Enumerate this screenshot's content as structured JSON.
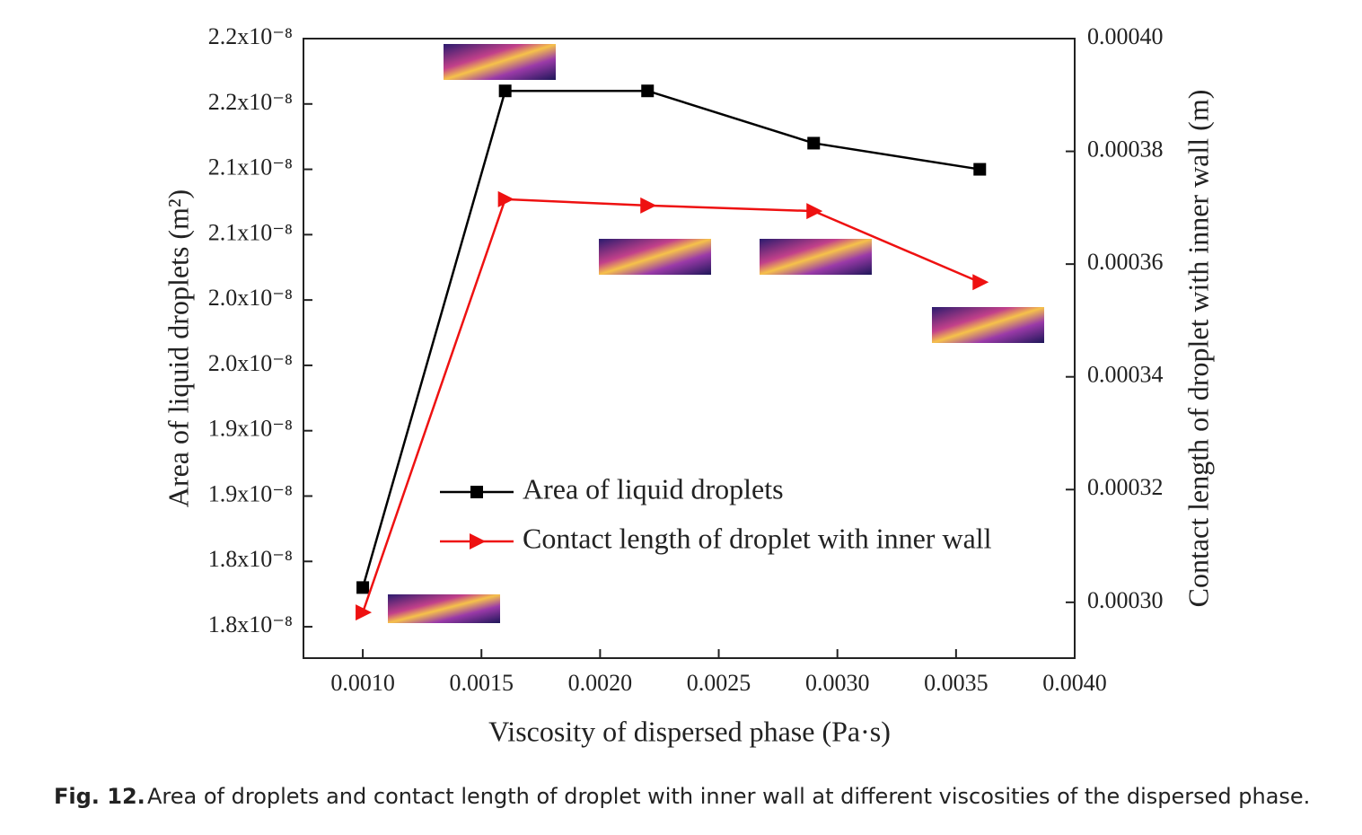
{
  "chart_data": {
    "type": "line",
    "x_label": "Viscosity of dispersed phase (Pa·s)",
    "y_label": "Area of liquid droplets (m²)",
    "y2_label": "Contact length of droplet with inner wall (m)",
    "caption_label": "Fig. 12.",
    "caption": "Area of droplets and contact length of droplet with inner wall at different viscosities of the dispersed phase.",
    "x": [
      0.001,
      0.0016,
      0.0022,
      0.0029,
      0.0036
    ],
    "series": [
      {
        "name": "Area of liquid droplets",
        "color": "#000000",
        "marker": "square",
        "values": [
          1.83e-08,
          2.21e-08,
          2.21e-08,
          2.17e-08,
          2.15e-08
        ]
      },
      {
        "name": "Contact length of droplet with inner wall",
        "color": "#ee1111",
        "marker": "triangle-right",
        "axis": "y2",
        "values": [
          0.0002982,
          0.0003715,
          0.0003704,
          0.0003694,
          0.0003568
        ]
      }
    ],
    "xlim": [
      0.00075,
      0.004
    ],
    "xticks": [
      {
        "value": 0.001,
        "label": "0.0010"
      },
      {
        "value": 0.0015,
        "label": "0.0015"
      },
      {
        "value": 0.002,
        "label": "0.0020"
      },
      {
        "value": 0.0025,
        "label": "0.0025"
      },
      {
        "value": 0.003,
        "label": "0.0030"
      },
      {
        "value": 0.0035,
        "label": "0.0035"
      },
      {
        "value": 0.004,
        "label": "0.0040"
      }
    ],
    "ylim": [
      1.776e-08,
      2.25e-08
    ],
    "yticks": [
      {
        "value": 1.8e-08,
        "label": "1.8x10⁻⁸"
      },
      {
        "value": 1.85e-08,
        "label": "1.8x10⁻⁸"
      },
      {
        "value": 1.9e-08,
        "label": "1.9x10⁻⁸"
      },
      {
        "value": 1.95e-08,
        "label": "1.9x10⁻⁸"
      },
      {
        "value": 2e-08,
        "label": "2.0x10⁻⁸"
      },
      {
        "value": 2.05e-08,
        "label": "2.0x10⁻⁸"
      },
      {
        "value": 2.1e-08,
        "label": "2.1x10⁻⁸"
      },
      {
        "value": 2.15e-08,
        "label": "2.1x10⁻⁸"
      },
      {
        "value": 2.2e-08,
        "label": "2.2x10⁻⁸"
      },
      {
        "value": 2.25e-08,
        "label": "2.2x10⁻⁸"
      }
    ],
    "y2lim": [
      0.0002901,
      0.0004
    ],
    "y2ticks": [
      {
        "value": 0.0003,
        "label": "0.00030"
      },
      {
        "value": 0.00032,
        "label": "0.00032"
      },
      {
        "value": 0.00034,
        "label": "0.00034"
      },
      {
        "value": 0.00036,
        "label": "0.00036"
      },
      {
        "value": 0.00038,
        "label": "0.00038"
      },
      {
        "value": 0.0004,
        "label": "0.00040"
      }
    ],
    "legend": "lower-center",
    "grid": false
  }
}
